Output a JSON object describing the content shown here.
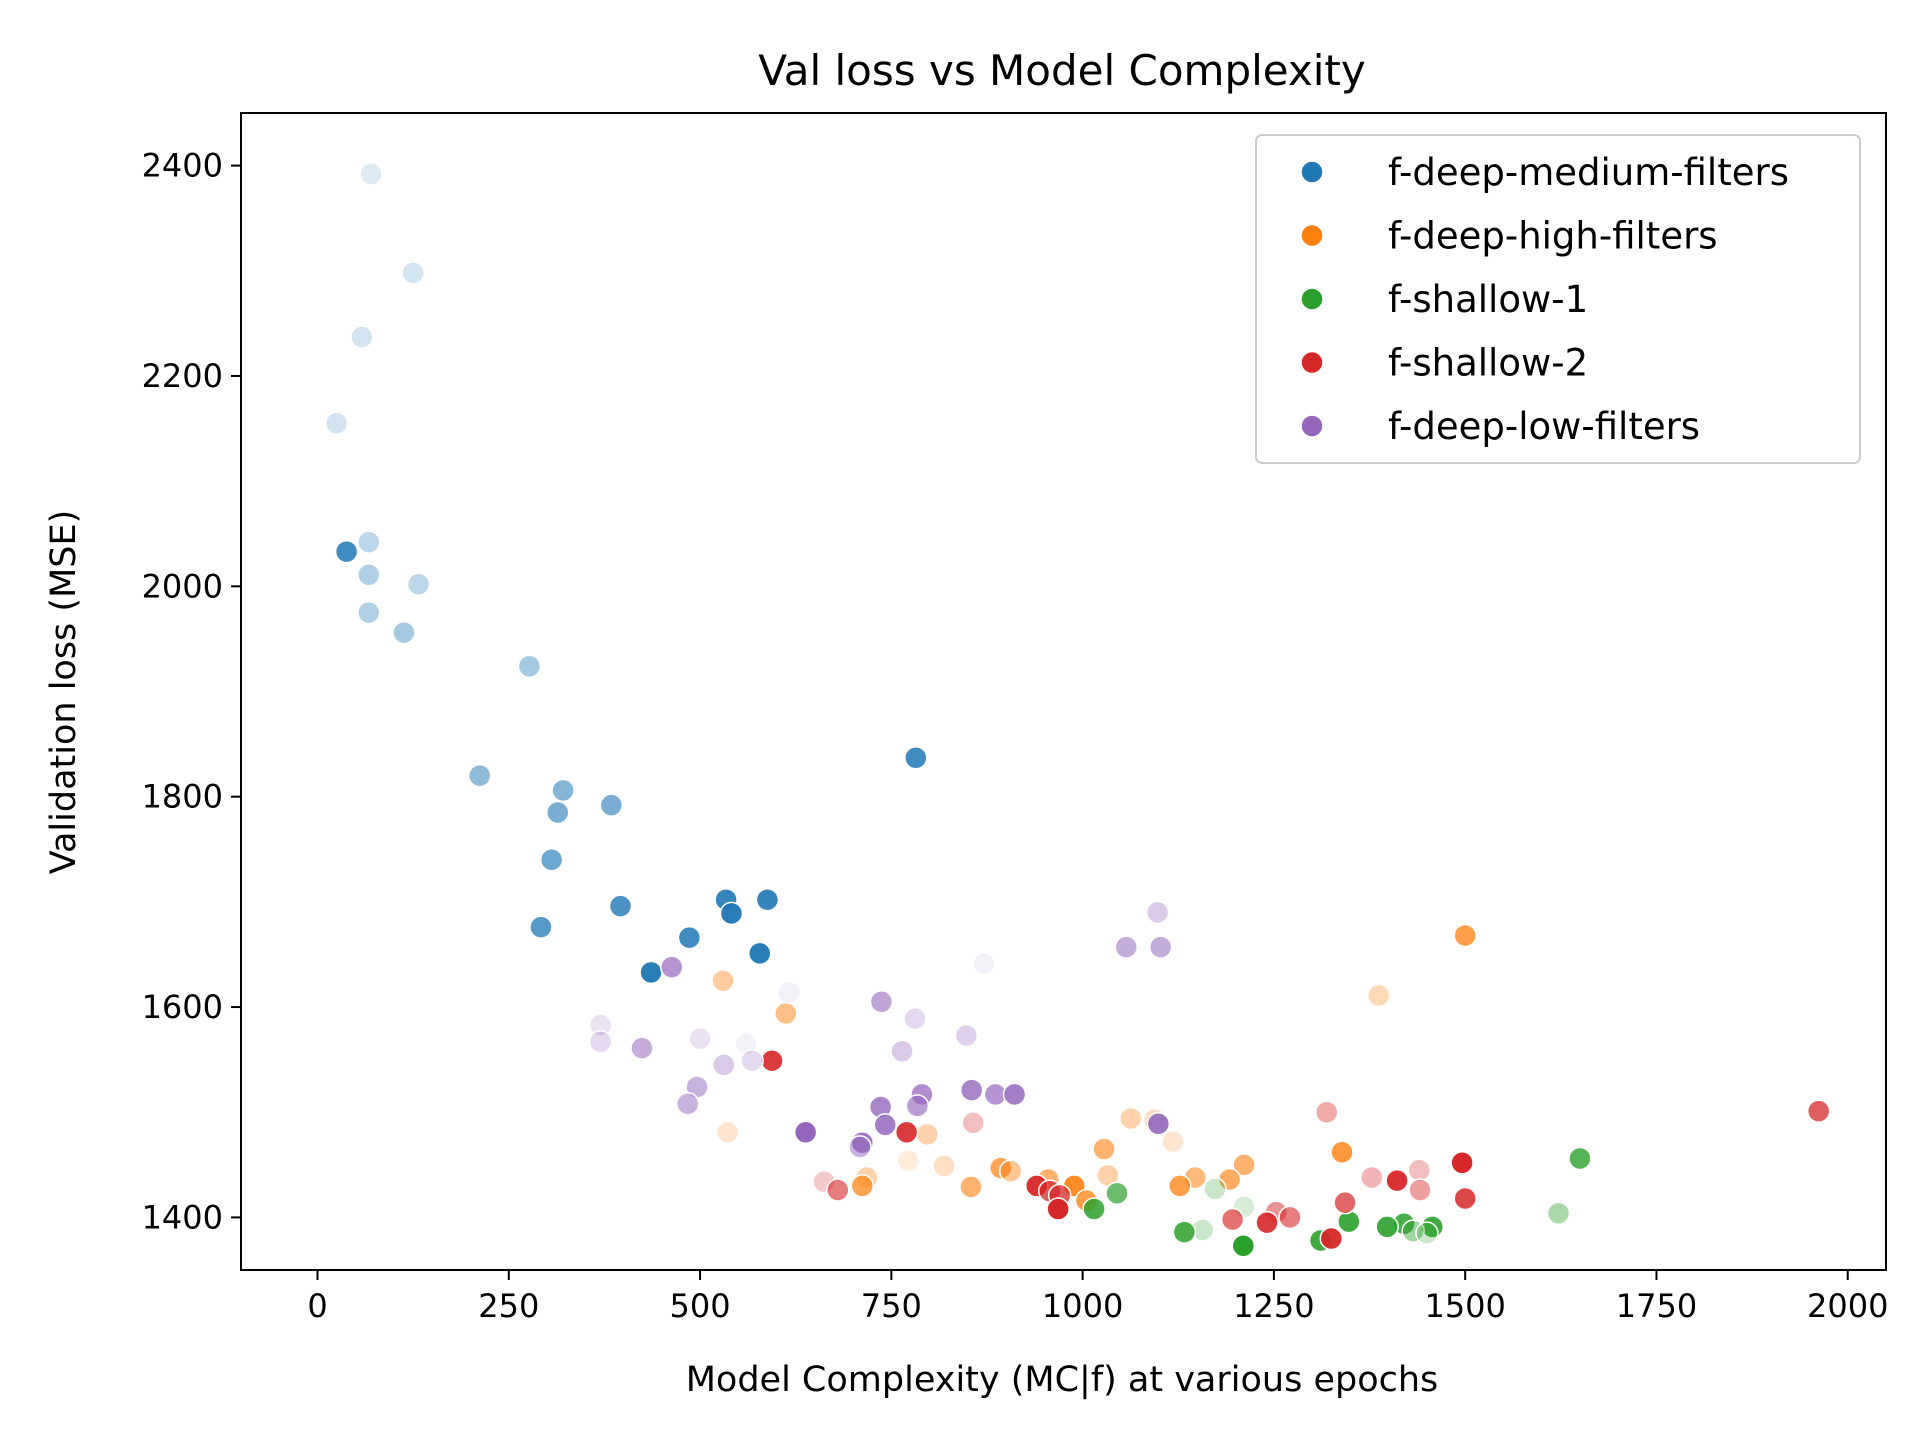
{
  "chart_data": {
    "type": "scatter",
    "title": "Val loss vs Model Complexity",
    "xlabel": "Model Complexity (MC|f) at various epochs",
    "ylabel": "Validation loss (MSE)",
    "xlim": [
      -100,
      2050
    ],
    "ylim": [
      1350,
      2450
    ],
    "xticks": [
      0,
      250,
      500,
      750,
      1000,
      1250,
      1500,
      1750,
      2000
    ],
    "yticks": [
      1400,
      1600,
      1800,
      2000,
      2200,
      2400
    ],
    "grid": false,
    "legend_position": "top-right",
    "series": [
      {
        "name": "f-deep-medium-filters",
        "color": "#1f77b4",
        "points": [
          {
            "x": 70,
            "y": 2392,
            "a": 0.15
          },
          {
            "x": 125,
            "y": 2298,
            "a": 0.2
          },
          {
            "x": 58,
            "y": 2237,
            "a": 0.2
          },
          {
            "x": 25,
            "y": 2155,
            "a": 0.2
          },
          {
            "x": 67,
            "y": 2042,
            "a": 0.3
          },
          {
            "x": 38,
            "y": 2033,
            "a": 0.85
          },
          {
            "x": 67,
            "y": 2011,
            "a": 0.35
          },
          {
            "x": 132,
            "y": 2002,
            "a": 0.3
          },
          {
            "x": 67,
            "y": 1975,
            "a": 0.35
          },
          {
            "x": 113,
            "y": 1956,
            "a": 0.4
          },
          {
            "x": 277,
            "y": 1924,
            "a": 0.4
          },
          {
            "x": 212,
            "y": 1820,
            "a": 0.5
          },
          {
            "x": 321,
            "y": 1806,
            "a": 0.55
          },
          {
            "x": 782,
            "y": 1837,
            "a": 0.85
          },
          {
            "x": 384,
            "y": 1792,
            "a": 0.6
          },
          {
            "x": 314,
            "y": 1785,
            "a": 0.6
          },
          {
            "x": 306,
            "y": 1740,
            "a": 0.65
          },
          {
            "x": 534,
            "y": 1702,
            "a": 0.9
          },
          {
            "x": 588,
            "y": 1702,
            "a": 0.9
          },
          {
            "x": 396,
            "y": 1696,
            "a": 0.8
          },
          {
            "x": 541,
            "y": 1689,
            "a": 0.95
          },
          {
            "x": 292,
            "y": 1676,
            "a": 0.75
          },
          {
            "x": 486,
            "y": 1666,
            "a": 0.85
          },
          {
            "x": 578,
            "y": 1651,
            "a": 0.95
          },
          {
            "x": 436,
            "y": 1633,
            "a": 0.95
          }
        ]
      },
      {
        "name": "f-deep-high-filters",
        "color": "#ff7f0e",
        "points": [
          {
            "x": 1500,
            "y": 1668,
            "a": 0.75
          },
          {
            "x": 1387,
            "y": 1611,
            "a": 0.3
          },
          {
            "x": 530,
            "y": 1625,
            "a": 0.4
          },
          {
            "x": 612,
            "y": 1594,
            "a": 0.5
          },
          {
            "x": 536,
            "y": 1481,
            "a": 0.2
          },
          {
            "x": 1063,
            "y": 1494,
            "a": 0.35
          },
          {
            "x": 1094,
            "y": 1493,
            "a": 0.25
          },
          {
            "x": 797,
            "y": 1479,
            "a": 0.35
          },
          {
            "x": 1118,
            "y": 1472,
            "a": 0.2
          },
          {
            "x": 1028,
            "y": 1465,
            "a": 0.6
          },
          {
            "x": 1339,
            "y": 1462,
            "a": 0.8
          },
          {
            "x": 772,
            "y": 1454,
            "a": 0.15
          },
          {
            "x": 819,
            "y": 1449,
            "a": 0.25
          },
          {
            "x": 1211,
            "y": 1450,
            "a": 0.6
          },
          {
            "x": 893,
            "y": 1447,
            "a": 0.7
          },
          {
            "x": 906,
            "y": 1444,
            "a": 0.45
          },
          {
            "x": 1033,
            "y": 1440,
            "a": 0.35
          },
          {
            "x": 1147,
            "y": 1438,
            "a": 0.55
          },
          {
            "x": 1192,
            "y": 1436,
            "a": 0.65
          },
          {
            "x": 718,
            "y": 1438,
            "a": 0.35
          },
          {
            "x": 955,
            "y": 1436,
            "a": 0.6
          },
          {
            "x": 712,
            "y": 1430,
            "a": 0.7
          },
          {
            "x": 854,
            "y": 1429,
            "a": 0.6
          },
          {
            "x": 1127,
            "y": 1430,
            "a": 0.75
          },
          {
            "x": 989,
            "y": 1430,
            "a": 0.9
          },
          {
            "x": 1005,
            "y": 1416,
            "a": 0.75
          }
        ]
      },
      {
        "name": "f-shallow-1",
        "color": "#2ca02c",
        "points": [
          {
            "x": 1650,
            "y": 1456,
            "a": 0.8
          },
          {
            "x": 1045,
            "y": 1423,
            "a": 0.7
          },
          {
            "x": 1173,
            "y": 1427,
            "a": 0.25
          },
          {
            "x": 1211,
            "y": 1410,
            "a": 0.2
          },
          {
            "x": 1015,
            "y": 1408,
            "a": 0.85
          },
          {
            "x": 1622,
            "y": 1404,
            "a": 0.4
          },
          {
            "x": 1348,
            "y": 1396,
            "a": 0.9
          },
          {
            "x": 1420,
            "y": 1394,
            "a": 0.85
          },
          {
            "x": 1457,
            "y": 1391,
            "a": 0.9
          },
          {
            "x": 1398,
            "y": 1391,
            "a": 0.9
          },
          {
            "x": 1157,
            "y": 1388,
            "a": 0.25
          },
          {
            "x": 1432,
            "y": 1387,
            "a": 0.45
          },
          {
            "x": 1450,
            "y": 1385,
            "a": 0.25
          },
          {
            "x": 1133,
            "y": 1386,
            "a": 0.85
          },
          {
            "x": 1311,
            "y": 1378,
            "a": 0.9
          },
          {
            "x": 1210,
            "y": 1373,
            "a": 1.0
          }
        ]
      },
      {
        "name": "f-shallow-2",
        "color": "#d62728",
        "points": [
          {
            "x": 1962,
            "y": 1501,
            "a": 0.75
          },
          {
            "x": 1319,
            "y": 1500,
            "a": 0.4
          },
          {
            "x": 594,
            "y": 1549,
            "a": 0.9
          },
          {
            "x": 770,
            "y": 1481,
            "a": 0.9
          },
          {
            "x": 857,
            "y": 1490,
            "a": 0.3
          },
          {
            "x": 1496,
            "y": 1452,
            "a": 1.0
          },
          {
            "x": 1440,
            "y": 1445,
            "a": 0.3
          },
          {
            "x": 1378,
            "y": 1438,
            "a": 0.35
          },
          {
            "x": 1411,
            "y": 1435,
            "a": 0.95
          },
          {
            "x": 662,
            "y": 1434,
            "a": 0.25
          },
          {
            "x": 940,
            "y": 1430,
            "a": 0.95
          },
          {
            "x": 957,
            "y": 1425,
            "a": 0.75
          },
          {
            "x": 680,
            "y": 1426,
            "a": 0.6
          },
          {
            "x": 1441,
            "y": 1426,
            "a": 0.45
          },
          {
            "x": 970,
            "y": 1421,
            "a": 0.75
          },
          {
            "x": 1500,
            "y": 1418,
            "a": 0.85
          },
          {
            "x": 1343,
            "y": 1414,
            "a": 0.7
          },
          {
            "x": 968,
            "y": 1408,
            "a": 1.0
          },
          {
            "x": 1253,
            "y": 1405,
            "a": 0.5
          },
          {
            "x": 1271,
            "y": 1400,
            "a": 0.6
          },
          {
            "x": 1196,
            "y": 1398,
            "a": 0.65
          },
          {
            "x": 1241,
            "y": 1395,
            "a": 0.9
          },
          {
            "x": 1325,
            "y": 1380,
            "a": 0.95
          }
        ]
      },
      {
        "name": "f-deep-low-filters",
        "color": "#9467bd",
        "points": [
          {
            "x": 1098,
            "y": 1690,
            "a": 0.35
          },
          {
            "x": 1057,
            "y": 1657,
            "a": 0.55
          },
          {
            "x": 1102,
            "y": 1657,
            "a": 0.55
          },
          {
            "x": 871,
            "y": 1641,
            "a": 0.1
          },
          {
            "x": 463,
            "y": 1638,
            "a": 0.7
          },
          {
            "x": 616,
            "y": 1614,
            "a": 0.1
          },
          {
            "x": 737,
            "y": 1605,
            "a": 0.6
          },
          {
            "x": 781,
            "y": 1589,
            "a": 0.25
          },
          {
            "x": 370,
            "y": 1583,
            "a": 0.2
          },
          {
            "x": 370,
            "y": 1567,
            "a": 0.25
          },
          {
            "x": 500,
            "y": 1570,
            "a": 0.2
          },
          {
            "x": 848,
            "y": 1573,
            "a": 0.3
          },
          {
            "x": 560,
            "y": 1565,
            "a": 0.1
          },
          {
            "x": 424,
            "y": 1561,
            "a": 0.55
          },
          {
            "x": 764,
            "y": 1558,
            "a": 0.35
          },
          {
            "x": 568,
            "y": 1549,
            "a": 0.25
          },
          {
            "x": 531,
            "y": 1545,
            "a": 0.35
          },
          {
            "x": 496,
            "y": 1524,
            "a": 0.5
          },
          {
            "x": 855,
            "y": 1521,
            "a": 0.8
          },
          {
            "x": 886,
            "y": 1517,
            "a": 0.7
          },
          {
            "x": 911,
            "y": 1517,
            "a": 0.85
          },
          {
            "x": 790,
            "y": 1517,
            "a": 0.75
          },
          {
            "x": 484,
            "y": 1508,
            "a": 0.5
          },
          {
            "x": 736,
            "y": 1505,
            "a": 0.8
          },
          {
            "x": 784,
            "y": 1506,
            "a": 0.65
          },
          {
            "x": 1099,
            "y": 1489,
            "a": 0.9
          },
          {
            "x": 742,
            "y": 1488,
            "a": 0.85
          },
          {
            "x": 638,
            "y": 1481,
            "a": 1.0
          },
          {
            "x": 712,
            "y": 1471,
            "a": 0.9
          },
          {
            "x": 709,
            "y": 1467,
            "a": 0.5
          }
        ]
      }
    ]
  }
}
